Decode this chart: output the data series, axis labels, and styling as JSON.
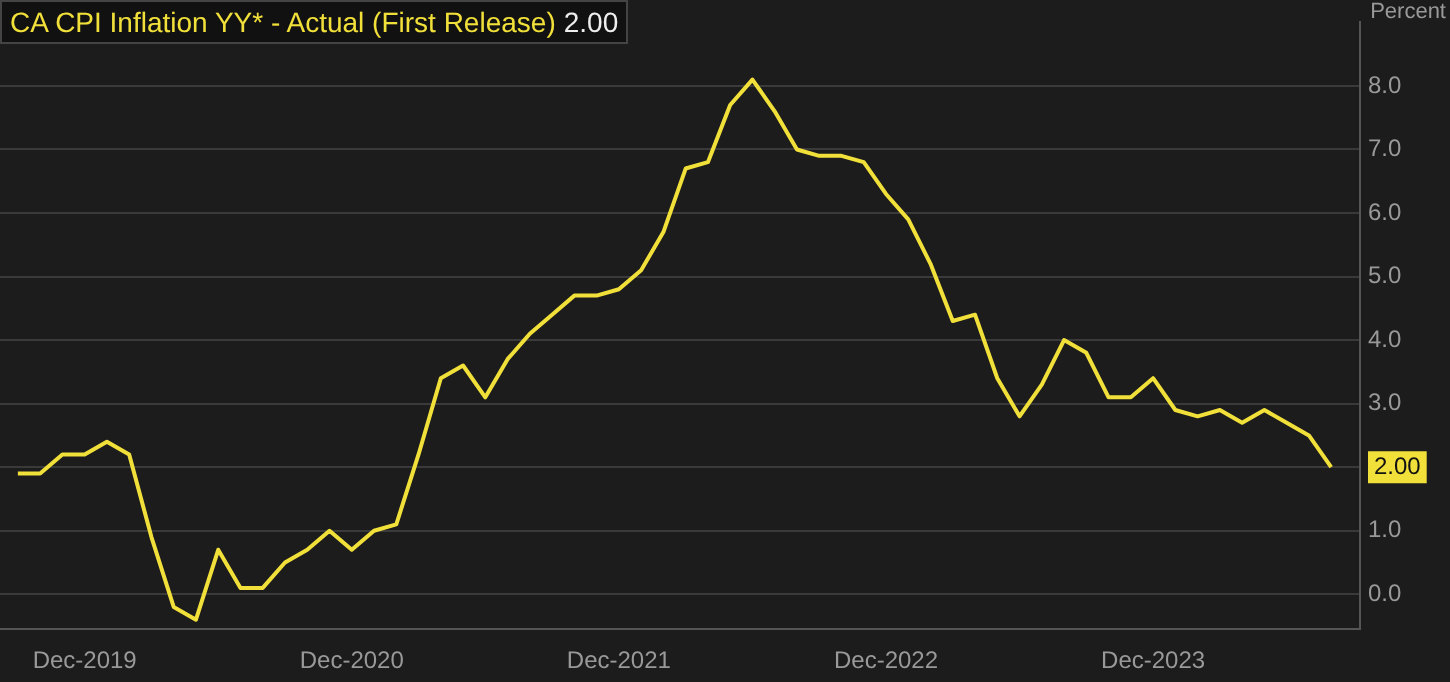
{
  "chart_data": {
    "type": "line",
    "title": "CA CPI Inflation YY* - Actual (First Release)",
    "subtitle": "2.00",
    "ylabel": "Percent",
    "x": [
      "2019-09",
      "2019-10",
      "2019-11",
      "2019-12",
      "2020-01",
      "2020-02",
      "2020-03",
      "2020-04",
      "2020-05",
      "2020-06",
      "2020-07",
      "2020-08",
      "2020-09",
      "2020-10",
      "2020-11",
      "2020-12",
      "2021-01",
      "2021-02",
      "2021-03",
      "2021-04",
      "2021-05",
      "2021-06",
      "2021-07",
      "2021-08",
      "2021-09",
      "2021-10",
      "2021-11",
      "2021-12",
      "2022-01",
      "2022-02",
      "2022-03",
      "2022-04",
      "2022-05",
      "2022-06",
      "2022-07",
      "2022-08",
      "2022-09",
      "2022-10",
      "2022-11",
      "2022-12",
      "2023-01",
      "2023-02",
      "2023-03",
      "2023-04",
      "2023-05",
      "2023-06",
      "2023-07",
      "2023-08",
      "2023-09",
      "2023-10",
      "2023-11",
      "2023-12",
      "2024-01",
      "2024-02",
      "2024-03",
      "2024-04",
      "2024-05",
      "2024-06",
      "2024-07",
      "2024-08"
    ],
    "series": [
      {
        "color": "#f2e03a",
        "values": [
          1.9,
          1.9,
          2.2,
          2.2,
          2.4,
          2.2,
          0.9,
          -0.2,
          -0.4,
          0.7,
          0.1,
          0.1,
          0.5,
          0.7,
          1.0,
          0.7,
          1.0,
          1.1,
          2.2,
          3.4,
          3.6,
          3.1,
          3.7,
          4.1,
          4.4,
          4.7,
          4.7,
          4.8,
          5.1,
          5.7,
          6.7,
          6.8,
          7.7,
          8.1,
          7.6,
          7.0,
          6.9,
          6.9,
          6.8,
          6.3,
          5.9,
          5.2,
          4.3,
          4.4,
          3.4,
          2.8,
          3.3,
          4.0,
          3.8,
          3.1,
          3.1,
          3.4,
          2.9,
          2.8,
          2.9,
          2.7,
          2.9,
          2.7,
          2.5,
          2.0
        ]
      }
    ],
    "xlim": [
      "2019-08-07",
      "2024-09-10"
    ],
    "xticks": [
      {
        "value": "2019-12",
        "label": "Dec-2019"
      },
      {
        "value": "2020-12",
        "label": "Dec-2020"
      },
      {
        "value": "2021-12",
        "label": "Dec-2021"
      },
      {
        "value": "2022-12",
        "label": "Dec-2022"
      },
      {
        "value": "2023-12",
        "label": "Dec-2023"
      }
    ],
    "ylim": [
      -0.55,
      9.0
    ],
    "yticks": [
      {
        "value": 0,
        "label": "0.0"
      },
      {
        "value": 1,
        "label": "1.0"
      },
      {
        "value": 2,
        "label": null
      },
      {
        "value": 3,
        "label": "3.0"
      },
      {
        "value": 4,
        "label": "4.0"
      },
      {
        "value": 5,
        "label": "5.0"
      },
      {
        "value": 6,
        "label": "6.0"
      },
      {
        "value": 7,
        "label": "7.0"
      },
      {
        "value": 8,
        "label": "8.0"
      }
    ],
    "annotations": [
      {
        "text": "2.00",
        "x": "2024-08",
        "y": 2.0
      }
    ],
    "grid": "y",
    "legend": false,
    "marker": "none",
    "line_style": "solid"
  }
}
